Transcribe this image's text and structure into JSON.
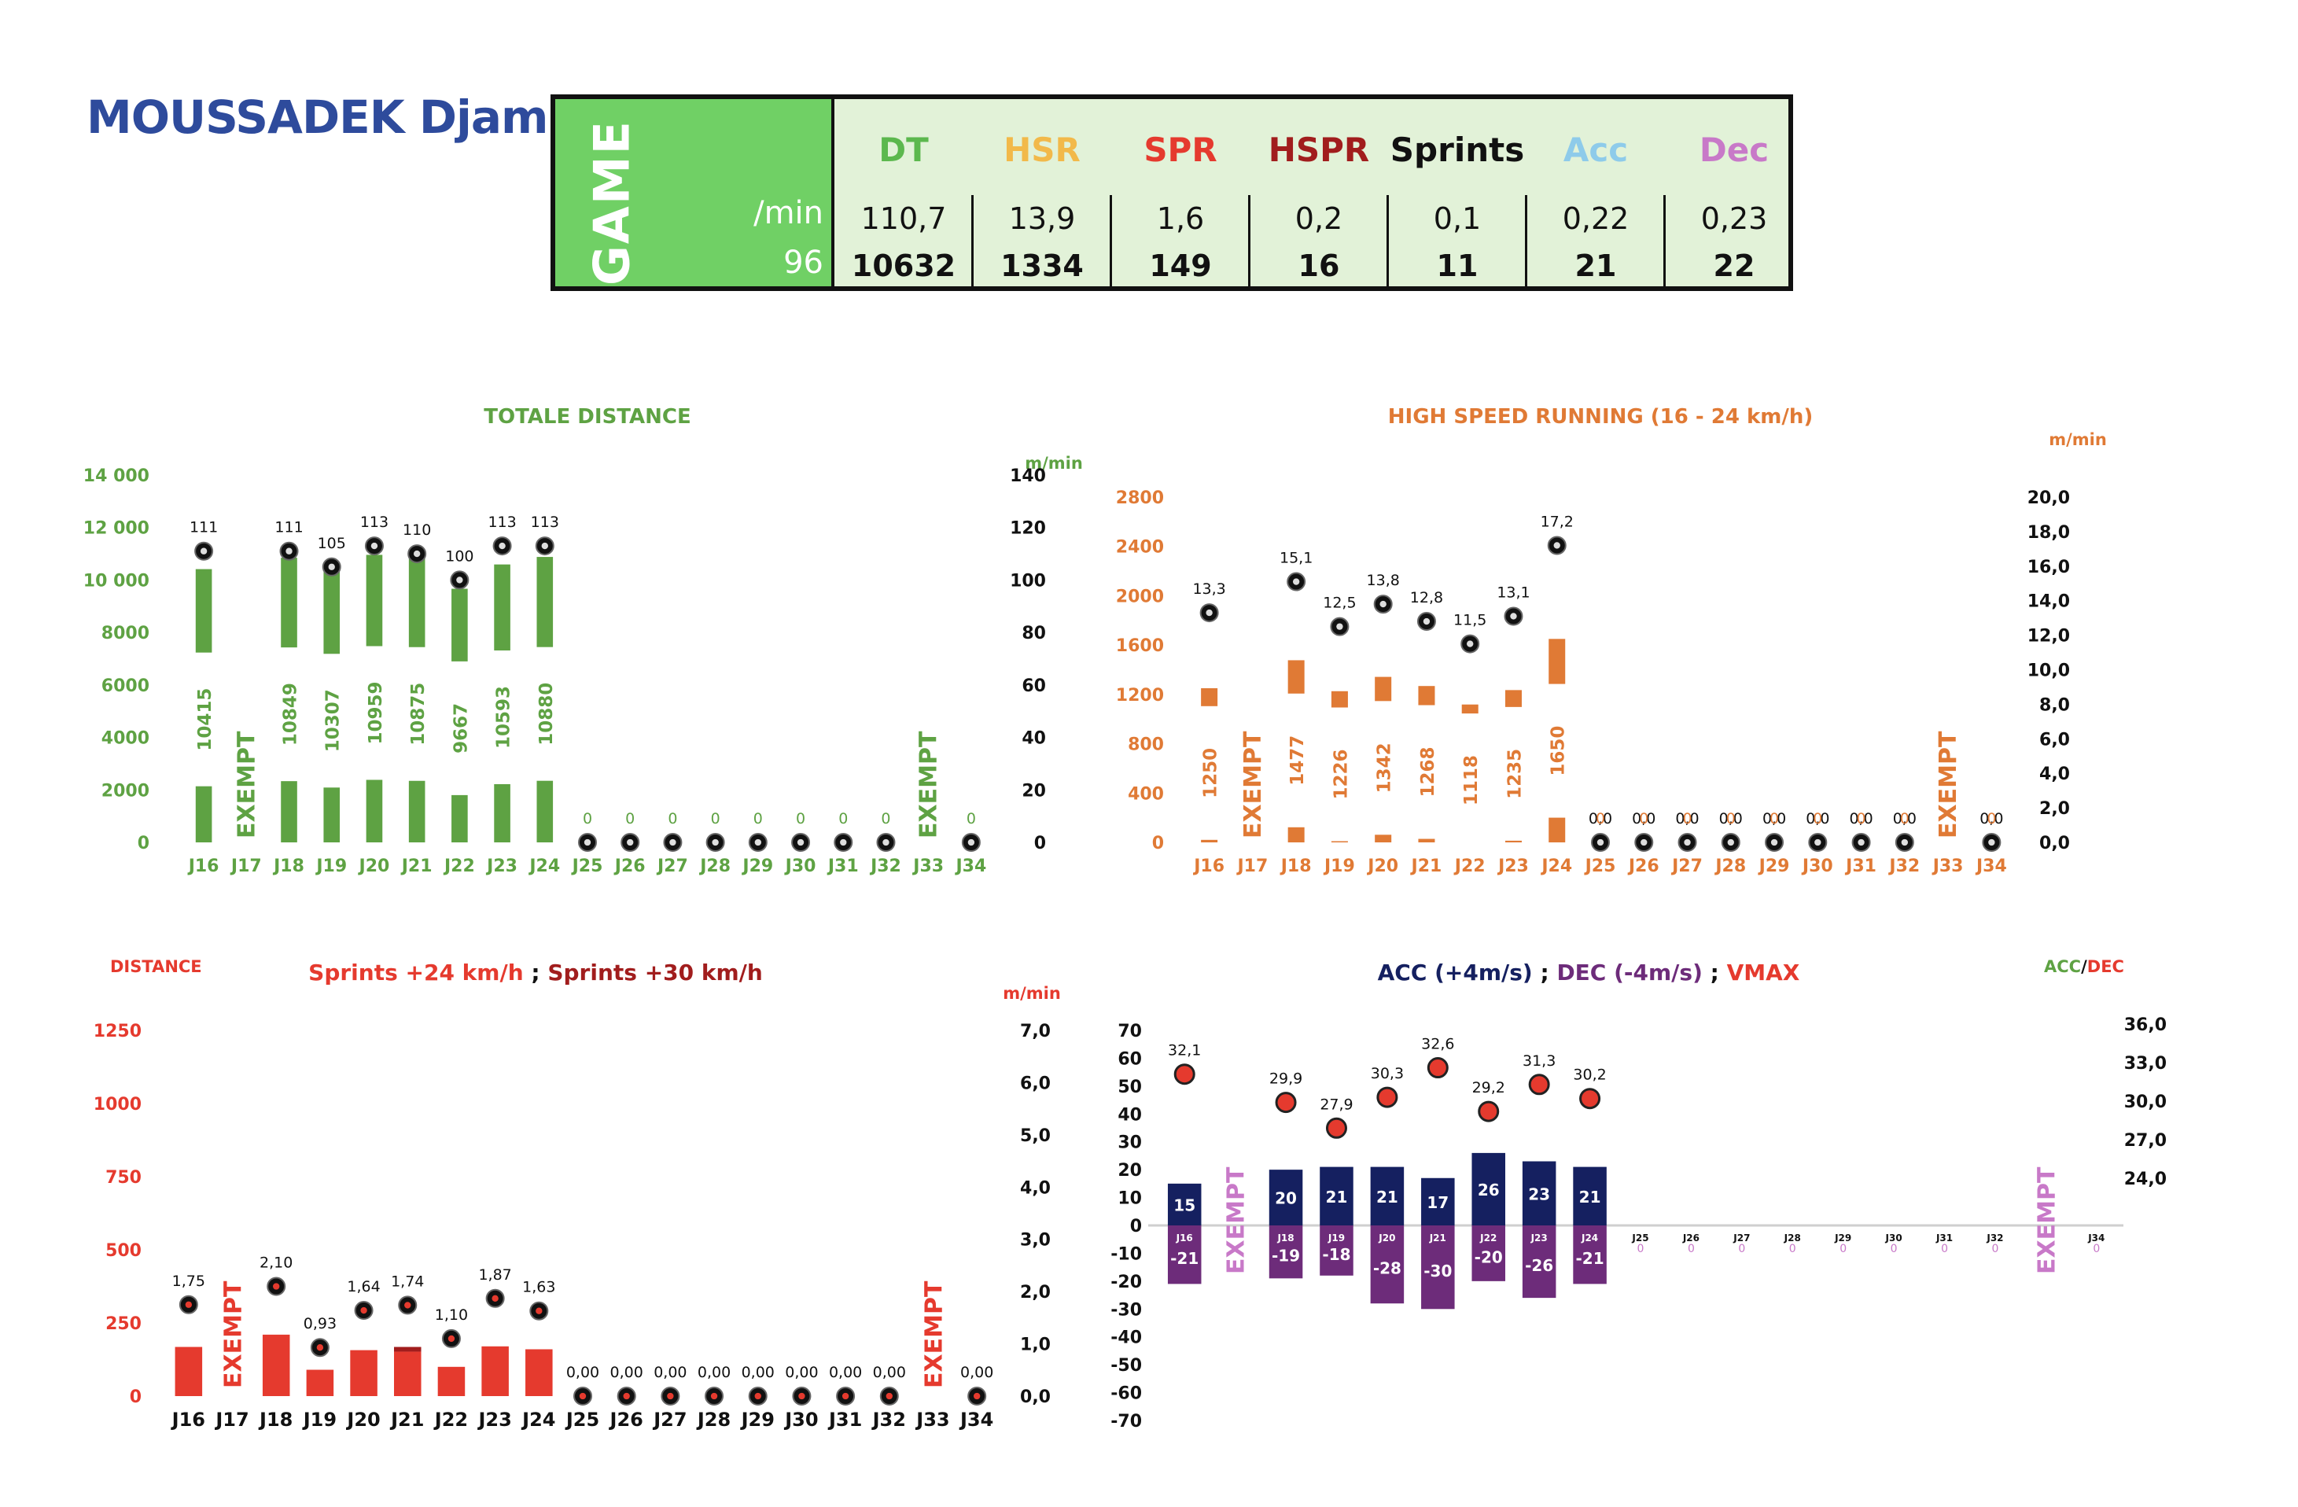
{
  "header": {
    "player_name": "MOUSSADEK Djam",
    "game_label": "GAME",
    "per_min_label": "/min",
    "minutes_played": "96",
    "metrics": [
      {
        "label": "DT",
        "color": "#5cb84e",
        "per_min": "110,7",
        "total": "10632"
      },
      {
        "label": "HSR",
        "color": "#f2b94a",
        "per_min": "13,9",
        "total": "1334"
      },
      {
        "label": "SPR",
        "color": "#e53a2e",
        "per_min": "1,6",
        "total": "149"
      },
      {
        "label": "HSPR",
        "color": "#a11d1d",
        "per_min": "0,2",
        "total": "16"
      },
      {
        "label": "Sprints",
        "color": "#111111",
        "per_min": "0,1",
        "total": "11"
      },
      {
        "label": "Acc",
        "color": "#8ecbea",
        "per_min": "0,22",
        "total": "21"
      },
      {
        "label": "Dec",
        "color": "#c879c8",
        "per_min": "0,23",
        "total": "22"
      }
    ]
  },
  "chart_data": [
    {
      "id": "dt",
      "type": "bar",
      "title": "TOTALE DISTANCE",
      "y2label": "m/min",
      "categories": [
        "J16",
        "J17",
        "J18",
        "J19",
        "J20",
        "J21",
        "J22",
        "J23",
        "J24",
        "J25",
        "J26",
        "J27",
        "J28",
        "J29",
        "J30",
        "J31",
        "J32",
        "J33",
        "J34"
      ],
      "yticks": [
        "14 000",
        "12 000",
        "10 000",
        "8000",
        "6000",
        "4000",
        "2000",
        "0"
      ],
      "y2ticks": [
        "140",
        "120",
        "100",
        "80",
        "60",
        "40",
        "20",
        "0"
      ],
      "ylim": [
        0,
        14000
      ],
      "y2lim": [
        0,
        140
      ],
      "bar_color": "#5ea243",
      "label_color": "#5ea243",
      "series": [
        {
          "name": "Distance",
          "values": [
            10415,
            null,
            10849,
            10307,
            10959,
            10875,
            9667,
            10593,
            10880,
            0,
            0,
            0,
            0,
            0,
            0,
            0,
            0,
            null,
            0
          ],
          "labels": [
            "10415",
            "",
            "10849",
            "10307",
            "10959",
            "10875",
            "9667",
            "10593",
            "10880",
            "0",
            "0",
            "0",
            "0",
            "0",
            "0",
            "0",
            "0",
            "",
            "0"
          ]
        },
        {
          "name": "m/min",
          "values": [
            111,
            null,
            111,
            105,
            113,
            110,
            100,
            113,
            113,
            0,
            0,
            0,
            0,
            0,
            0,
            0,
            0,
            null,
            0
          ],
          "labels": [
            "111",
            "",
            "111",
            "105",
            "113",
            "110",
            "100",
            "113",
            "113",
            "",
            "",
            "",
            "",
            "",
            "",
            "",
            "",
            "",
            ""
          ]
        }
      ],
      "exempt_label": "EXEMPT",
      "exempt_indices": [
        1,
        17
      ]
    },
    {
      "id": "hsr",
      "type": "bar",
      "title": "HIGH SPEED RUNNING  (16 - 24 km/h)",
      "y2label": "m/min",
      "categories": [
        "J16",
        "J17",
        "J18",
        "J19",
        "J20",
        "J21",
        "J22",
        "J23",
        "J24",
        "J25",
        "J26",
        "J27",
        "J28",
        "J29",
        "J30",
        "J31",
        "J32",
        "J33",
        "J34"
      ],
      "yticks": [
        "2800",
        "2400",
        "2000",
        "1600",
        "1200",
        "800",
        "400",
        "0"
      ],
      "y2ticks": [
        "20,0",
        "18,0",
        "16,0",
        "14,0",
        "12,0",
        "10,0",
        "8,0",
        "6,0",
        "4,0",
        "2,0",
        "0,0"
      ],
      "ylim": [
        0,
        2800
      ],
      "y2lim": [
        0,
        20
      ],
      "bar_color": "#e07a35",
      "label_color": "#e07a35",
      "series": [
        {
          "name": "HSR",
          "values": [
            1250,
            null,
            1477,
            1226,
            1342,
            1268,
            1118,
            1235,
            1650,
            0,
            0,
            0,
            0,
            0,
            0,
            0,
            0,
            null,
            0
          ],
          "labels": [
            "1250",
            "",
            "1477",
            "1226",
            "1342",
            "1268",
            "1118",
            "1235",
            "1650",
            "0",
            "0",
            "0",
            "0",
            "0",
            "0",
            "0",
            "0",
            "",
            "0"
          ]
        },
        {
          "name": "m/min",
          "values": [
            13.3,
            null,
            15.1,
            12.5,
            13.8,
            12.8,
            11.5,
            13.1,
            17.2,
            0,
            0,
            0,
            0,
            0,
            0,
            0,
            0,
            null,
            0
          ],
          "labels": [
            "13,3",
            "",
            "15,1",
            "12,5",
            "13,8",
            "12,8",
            "11,5",
            "13,1",
            "17,2",
            "0,0",
            "0,0",
            "0,0",
            "0,0",
            "0,0",
            "0,0",
            "0,0",
            "0,0",
            "",
            "0,0"
          ]
        }
      ],
      "exempt_label": "EXEMPT",
      "exempt_indices": [
        1,
        17
      ]
    },
    {
      "id": "spr",
      "type": "bar",
      "title": "Sprints +24 km/h",
      "title_sep": " ; ",
      "title2": "Sprints +30  km/h",
      "title_color": "#e53a2e",
      "title2_color": "#a11d1d",
      "ylabel": "DISTANCE",
      "y2label": "m/min",
      "categories": [
        "J16",
        "J17",
        "J18",
        "J19",
        "J20",
        "J21",
        "J22",
        "J23",
        "J24",
        "J25",
        "J26",
        "J27",
        "J28",
        "J29",
        "J30",
        "J31",
        "J32",
        "J33",
        "J34"
      ],
      "yticks": [
        "1250",
        "1000",
        "750",
        "500",
        "250",
        "0"
      ],
      "y2ticks": [
        "7,0",
        "6,0",
        "5,0",
        "4,0",
        "3,0",
        "2,0",
        "1,0",
        "0,0"
      ],
      "ylim": [
        0,
        1250
      ],
      "y2lim": [
        0,
        7
      ],
      "bar_color": "#e53a2e",
      "bar2_color": "#a11d1d",
      "series": [
        {
          "name": "Sprints +24 km/h",
          "values": [
            168,
            null,
            210,
            90,
            157,
            152,
            100,
            170,
            160,
            0,
            0,
            0,
            0,
            0,
            0,
            0,
            0,
            null,
            0
          ]
        },
        {
          "name": "Sprints +30 km/h",
          "values": [
            0,
            null,
            0,
            0,
            0,
            16,
            0,
            0,
            0,
            0,
            0,
            0,
            0,
            0,
            0,
            0,
            0,
            null,
            0
          ]
        },
        {
          "name": "m/min",
          "values": [
            1.75,
            null,
            2.1,
            0.93,
            1.64,
            1.74,
            1.1,
            1.87,
            1.63,
            0,
            0,
            0,
            0,
            0,
            0,
            0,
            0,
            null,
            0
          ],
          "labels": [
            "1,75",
            "",
            "2,10",
            "0,93",
            "1,64",
            "1,74",
            "1,10",
            "1,87",
            "1,63",
            "0,00",
            "0,00",
            "0,00",
            "0,00",
            "0,00",
            "0,00",
            "0,00",
            "0,00",
            "",
            "0,00"
          ]
        }
      ],
      "exempt_label": "EXEMPT",
      "exempt_indices": [
        1,
        17
      ]
    },
    {
      "id": "accdec",
      "type": "bar",
      "title_parts": [
        {
          "text": "ACC  (+4m/s)",
          "color": "#152060"
        },
        {
          "text": " ; ",
          "color": "#111111"
        },
        {
          "text": "DEC  (-4m/s)",
          "color": "#6d2c7a"
        },
        {
          "text": "  ; ",
          "color": "#111111"
        },
        {
          "text": "VMAX",
          "color": "#e53a2e"
        }
      ],
      "legend_acc": "ACC",
      "legend_sep": "/",
      "legend_dec": "DEC",
      "categories": [
        "J16",
        "J17",
        "J18",
        "J19",
        "J20",
        "J21",
        "J22",
        "J23",
        "J24",
        "J25",
        "J26",
        "J27",
        "J28",
        "J29",
        "J30",
        "J31",
        "J32",
        "J33",
        "J34"
      ],
      "yticks": [
        "70",
        "60",
        "50",
        "40",
        "30",
        "20",
        "10",
        "0",
        "-10",
        "-20",
        "-30",
        "-40",
        "-50",
        "-60",
        "-70"
      ],
      "y2ticks": [
        "36,0",
        "33,0",
        "30,0",
        "27,0",
        "24,0"
      ],
      "ylim": [
        -70,
        70
      ],
      "y2lim": [
        24,
        36
      ],
      "acc_color": "#152060",
      "dec_color": "#6d2c7a",
      "series": [
        {
          "name": "ACC",
          "values": [
            15,
            null,
            20,
            21,
            21,
            17,
            26,
            23,
            21,
            0,
            0,
            0,
            0,
            0,
            0,
            0,
            0,
            null,
            0
          ]
        },
        {
          "name": "DEC",
          "values": [
            -21,
            null,
            -19,
            -18,
            -28,
            -30,
            -20,
            -26,
            -21,
            0,
            0,
            0,
            0,
            0,
            0,
            0,
            0,
            null,
            0
          ]
        },
        {
          "name": "VMAX",
          "values": [
            32.1,
            null,
            29.9,
            27.9,
            30.3,
            32.6,
            29.2,
            31.3,
            30.2,
            null,
            null,
            null,
            null,
            null,
            null,
            null,
            null,
            null,
            null
          ],
          "labels": [
            "32,1",
            "",
            "29,9",
            "27,9",
            "30,3",
            "32,6",
            "29,2",
            "31,3",
            "30,2",
            "",
            "",
            "",
            "",
            "",
            "",
            "",
            "",
            "",
            ""
          ]
        }
      ],
      "zero_labels": [
        "0",
        "0",
        "0",
        "0",
        "0",
        "0",
        "0",
        "0",
        "0"
      ],
      "exempt_label": "EXEMPT",
      "exempt_indices": [
        1,
        17
      ]
    }
  ]
}
